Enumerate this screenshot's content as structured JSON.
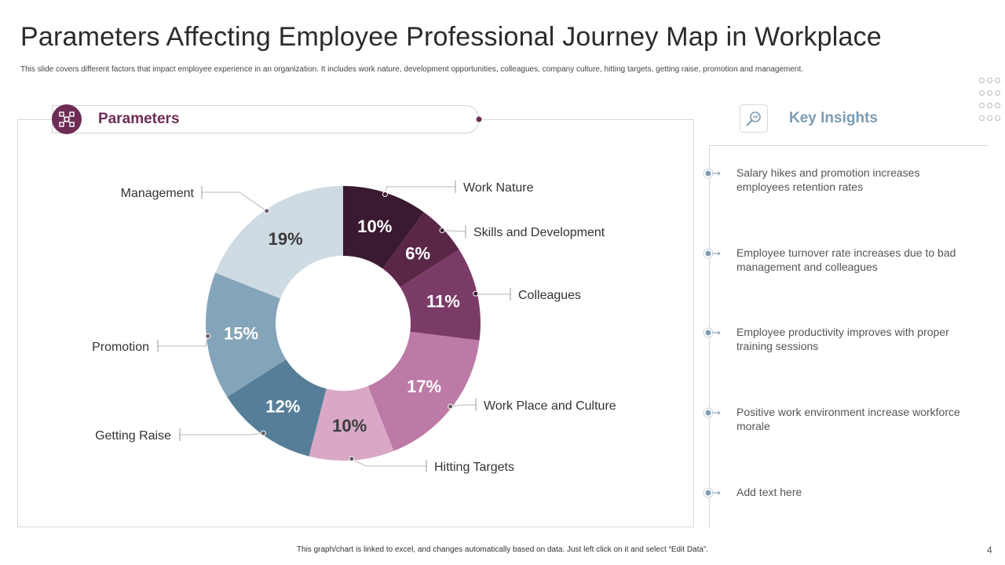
{
  "title": "Parameters Affecting Employee Professional Journey Map in Workplace",
  "subtitle": "This slide covers different factors that impact employee experience in an organization. It includes work nature, development opportunities, colleagues, company culture, hitting targets, getting raise, promotion and management.",
  "parameters_heading": "Parameters",
  "key_insights_heading": "Key Insights",
  "insights": [
    "Salary hikes and promotion increases employees retention rates",
    "Employee turnover rate increases due to bad management and colleagues",
    "Employee productivity improves with proper training sessions",
    "Positive work environment increase workforce morale",
    "Add text here"
  ],
  "footer": "This graph/chart is linked to excel, and changes automatically based on data. Just left click on it and select “Edit Data”.",
  "page_number": "4",
  "colors": {
    "accent": "#6e2c55",
    "insight_heading": "#7a9cb3",
    "marker": "#7f9fb3"
  },
  "chart_data": {
    "type": "donut",
    "title": "Parameters",
    "unit": "%",
    "slices": [
      {
        "label": "Work Nature",
        "value": 10,
        "display": "10%",
        "color": "#3a1a30"
      },
      {
        "label": "Skills and Development",
        "value": 6,
        "display": "6%",
        "color": "#5b2747"
      },
      {
        "label": "Colleagues",
        "value": 11,
        "display": "11%",
        "color": "#7b3b67"
      },
      {
        "label": "Work Place and Culture",
        "value": 17,
        "display": "17%",
        "color": "#bd7aa6"
      },
      {
        "label": "Hitting Targets",
        "value": 10,
        "display": "10%",
        "color": "#d8a8c6"
      },
      {
        "label": "Getting Raise",
        "value": 12,
        "display": "12%",
        "color": "#577e98"
      },
      {
        "label": "Promotion",
        "value": 15,
        "display": "15%",
        "color": "#84a4b9"
      },
      {
        "label": "Management",
        "value": 19,
        "display": "19%",
        "color": "#cfdbe3"
      }
    ]
  }
}
